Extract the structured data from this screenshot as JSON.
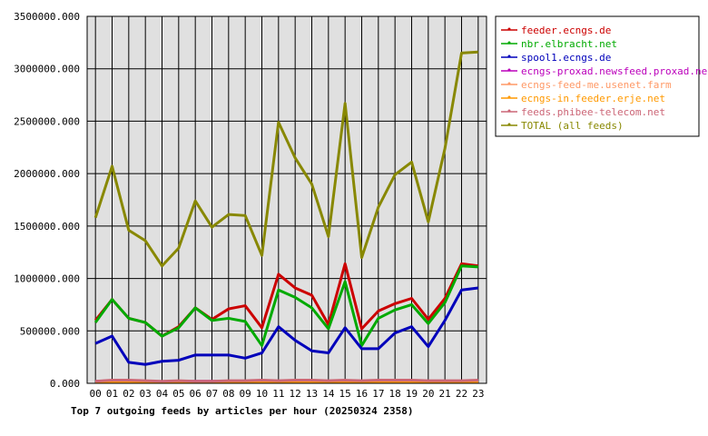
{
  "chart_data": {
    "type": "line",
    "title": "Top 7 outgoing feeds by articles per hour (20250324 2358)",
    "xlabel": "",
    "ylabel": "",
    "ylim": [
      0,
      3500000
    ],
    "yticks": [
      0,
      500000,
      1000000,
      1500000,
      2000000,
      2500000,
      3000000,
      3500000
    ],
    "ytick_labels": [
      "0.000",
      "500000.000",
      "1000000.000",
      "1500000.000",
      "2000000.000",
      "2500000.000",
      "3000000.000",
      "3500000.000"
    ],
    "grid": true,
    "legend_position": "top-right",
    "categories": [
      "00",
      "01",
      "02",
      "03",
      "04",
      "05",
      "06",
      "07",
      "08",
      "09",
      "10",
      "11",
      "12",
      "13",
      "14",
      "15",
      "16",
      "17",
      "18",
      "19",
      "20",
      "21",
      "22",
      "23"
    ],
    "series": [
      {
        "name": "feeder.ecngs.de",
        "color": "#cc0000",
        "values": [
          600000,
          800000,
          620000,
          580000,
          450000,
          540000,
          720000,
          610000,
          710000,
          740000,
          530000,
          1040000,
          910000,
          840000,
          560000,
          1140000,
          520000,
          690000,
          760000,
          810000,
          610000,
          810000,
          1140000,
          1120000
        ]
      },
      {
        "name": "nbr.elbracht.net",
        "color": "#00aa00",
        "values": [
          580000,
          800000,
          620000,
          580000,
          450000,
          530000,
          720000,
          600000,
          620000,
          590000,
          360000,
          890000,
          820000,
          720000,
          520000,
          970000,
          360000,
          620000,
          700000,
          750000,
          570000,
          770000,
          1120000,
          1110000
        ]
      },
      {
        "name": "spool1.ecngs.de",
        "color": "#0000bb",
        "values": [
          380000,
          450000,
          200000,
          180000,
          210000,
          220000,
          270000,
          270000,
          270000,
          240000,
          290000,
          540000,
          410000,
          310000,
          290000,
          530000,
          330000,
          330000,
          480000,
          540000,
          350000,
          600000,
          890000,
          910000
        ]
      },
      {
        "name": "ecngs-proxad.newsfeed.proxad.net",
        "color": "#bb00bb",
        "values": [
          20000,
          25000,
          25000,
          20000,
          15000,
          20000,
          20000,
          20000,
          20000,
          20000,
          25000,
          20000,
          25000,
          25000,
          20000,
          25000,
          20000,
          25000,
          25000,
          25000,
          20000,
          20000,
          20000,
          25000
        ]
      },
      {
        "name": "ecngs-feed-me.usenet.farm",
        "color": "#ff9966",
        "values": [
          15000,
          20000,
          20000,
          15000,
          15000,
          15000,
          15000,
          15000,
          15000,
          15000,
          20000,
          15000,
          15000,
          20000,
          15000,
          20000,
          15000,
          15000,
          20000,
          20000,
          15000,
          15000,
          15000,
          20000
        ]
      },
      {
        "name": "ecngs-in.feeder.erje.net",
        "color": "#ff9900",
        "values": [
          10000,
          15000,
          15000,
          10000,
          10000,
          10000,
          10000,
          10000,
          10000,
          10000,
          15000,
          10000,
          10000,
          15000,
          10000,
          15000,
          10000,
          10000,
          15000,
          15000,
          10000,
          10000,
          10000,
          15000
        ]
      },
      {
        "name": "feeds.phibee-telecom.net",
        "color": "#cc6677",
        "values": [
          20000,
          30000,
          30000,
          25000,
          20000,
          25000,
          20000,
          20000,
          25000,
          25000,
          30000,
          25000,
          30000,
          30000,
          25000,
          30000,
          25000,
          30000,
          30000,
          30000,
          25000,
          25000,
          25000,
          30000
        ]
      },
      {
        "name": "TOTAL (all feeds)",
        "color": "#888800",
        "values": [
          1580000,
          2070000,
          1460000,
          1360000,
          1120000,
          1290000,
          1740000,
          1490000,
          1610000,
          1600000,
          1220000,
          2490000,
          2150000,
          1900000,
          1400000,
          2670000,
          1200000,
          1680000,
          1990000,
          2110000,
          1540000,
          2240000,
          3150000,
          3160000
        ]
      }
    ]
  }
}
